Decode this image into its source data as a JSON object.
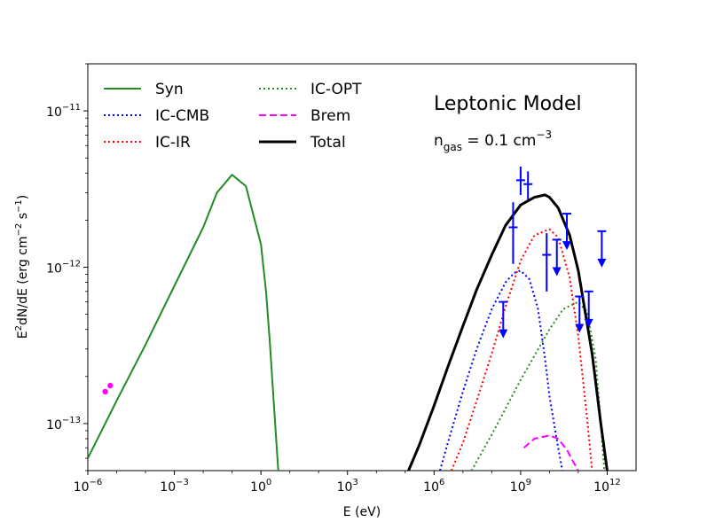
{
  "chart_data": {
    "type": "line",
    "title": "Leptonic Model",
    "annotation": {
      "base": "n",
      "sub": "gas",
      "eq": " = 0.1 cm",
      "sup": "−3"
    },
    "xlabel": "E (eV)",
    "ylabel": {
      "main": "E",
      "sup1": "2",
      "mid": "dN/dE (erg cm",
      "sup2": "−2",
      "mid2": " s",
      "sup3": "−1",
      "end": ")"
    },
    "x_scale": "log",
    "y_scale": "log",
    "xlim": [
      1e-06,
      10000000000000.0
    ],
    "ylim": [
      5e-14,
      2e-11
    ],
    "x_ticks": [
      {
        "value": 1e-06,
        "base": "10",
        "exp": "−6"
      },
      {
        "value": 0.001,
        "base": "10",
        "exp": "−3"
      },
      {
        "value": 1.0,
        "base": "10",
        "exp": "0"
      },
      {
        "value": 1000.0,
        "base": "10",
        "exp": "3"
      },
      {
        "value": 1000000.0,
        "base": "10",
        "exp": "6"
      },
      {
        "value": 1000000000.0,
        "base": "10",
        "exp": "9"
      },
      {
        "value": 1000000000000.0,
        "base": "10",
        "exp": "12"
      }
    ],
    "y_ticks": [
      {
        "value": 1e-13,
        "base": "10",
        "exp": "−13"
      },
      {
        "value": 1e-12,
        "base": "10",
        "exp": "−12"
      },
      {
        "value": 1e-11,
        "base": "10",
        "exp": "−11"
      }
    ],
    "legend": {
      "placement": "top-left",
      "columns": 2
    },
    "series": [
      {
        "name": "Syn",
        "color": "#228B22",
        "style": "solid",
        "width": 2,
        "x": [
          1e-06,
          1e-05,
          0.0001,
          0.001,
          0.01,
          0.03,
          0.1,
          0.3,
          1,
          1.5,
          2,
          3,
          4
        ],
        "y": [
          6e-14,
          1.4e-13,
          3.2e-13,
          7.6e-13,
          1.8e-12,
          3e-12,
          3.9e-12,
          3.3e-12,
          1.4e-12,
          7e-13,
          3.5e-13,
          1.1e-13,
          5e-14
        ]
      },
      {
        "name": "IC-CMB",
        "color": "#0000FF",
        "style": "dotted",
        "width": 2,
        "x": [
          1600000.0,
          3000000.0,
          10000000.0,
          30000000.0,
          100000000.0,
          300000000.0,
          600000000.0,
          1000000000.0,
          2000000000.0,
          4000000000.0,
          7000000000.0,
          10000000000.0,
          20000000000.0,
          28000000000.0
        ],
        "y": [
          5e-14,
          7.5e-14,
          1.6e-13,
          3e-13,
          5.4e-13,
          8e-13,
          9.2e-13,
          9.5e-13,
          8.4e-13,
          5.4e-13,
          2.6e-13,
          1.5e-13,
          7e-14,
          5e-14
        ]
      },
      {
        "name": "IC-IR",
        "color": "#FF0000",
        "style": "dotted",
        "width": 2,
        "x": [
          4000000.0,
          10000000.0,
          30000000.0,
          100000000.0,
          300000000.0,
          1000000000.0,
          3000000000.0,
          10000000000.0,
          20000000000.0,
          50000000000.0,
          100000000000.0,
          200000000000.0,
          300000000000.0
        ],
        "y": [
          5e-14,
          7.5e-14,
          1.4e-13,
          2.8e-13,
          5.6e-13,
          1.1e-12,
          1.6e-12,
          1.75e-12,
          1.55e-12,
          8.6e-13,
          3.6e-13,
          1.1e-13,
          5e-14
        ]
      },
      {
        "name": "IC-OPT",
        "color": "#228B22",
        "style": "dotted",
        "width": 2,
        "x": [
          20000000.0,
          100000000.0,
          1000000000.0,
          10000000000.0,
          30000000000.0,
          100000000000.0,
          200000000000.0,
          400000000000.0,
          600000000000.0,
          800000000000.0
        ],
        "y": [
          5e-14,
          8.5e-14,
          1.9e-13,
          4e-13,
          5.4e-13,
          6e-13,
          5.2e-13,
          2.6e-13,
          1e-13,
          5e-14
        ]
      },
      {
        "name": "Brem",
        "color": "#FF00FF",
        "style": "dashed",
        "width": 2,
        "x": [
          1300000000.0,
          3000000000.0,
          10000000000.0,
          20000000000.0,
          40000000000.0,
          70000000000.0,
          100000000000.0
        ],
        "y": [
          7e-14,
          8e-14,
          8.4e-14,
          8e-14,
          6.8e-14,
          5.6e-14,
          5e-14
        ]
      },
      {
        "name": "Total",
        "color": "#000000",
        "style": "solid",
        "width": 3,
        "x": [
          130000.0,
          300000.0,
          1000000.0,
          3000000.0,
          10000000.0,
          30000000.0,
          100000000.0,
          300000000.0,
          1000000000.0,
          3000000000.0,
          7000000000.0,
          10000000000.0,
          20000000000.0,
          50000000000.0,
          100000000000.0,
          300000000000.0,
          600000000000.0,
          1000000000000.0
        ],
        "y": [
          5e-14,
          7.2e-14,
          1.3e-13,
          2.3e-13,
          4.2e-13,
          7.2e-13,
          1.2e-12,
          1.85e-12,
          2.5e-12,
          2.8e-12,
          2.9e-12,
          2.8e-12,
          2.4e-12,
          1.6e-12,
          9.5e-13,
          2.8e-13,
          1e-13,
          5e-14
        ]
      }
    ],
    "observations": {
      "radio": {
        "color": "#FF00FF",
        "points": [
          {
            "x": 4e-06,
            "y": 1.6e-13
          },
          {
            "x": 6e-06,
            "y": 1.75e-13
          }
        ]
      },
      "gamma": {
        "color": "#0000FF",
        "points": [
          {
            "x": 250000000.0,
            "y": 6e-13,
            "upper_limit": true
          },
          {
            "x": 550000000.0,
            "y": 1.8e-12,
            "ylo": 1.05e-12,
            "yhi": 2.6e-12
          },
          {
            "x": 1000000000.0,
            "y": 3.6e-12,
            "ylo": 2.9e-12,
            "yhi": 4.4e-12
          },
          {
            "x": 1800000000.0,
            "y": 3.4e-12,
            "ylo": 2.7e-12,
            "yhi": 4.1e-12
          },
          {
            "x": 8000000000.0,
            "y": 1.2e-12,
            "ylo": 7e-13,
            "yhi": 1.65e-12
          },
          {
            "x": 18000000000.0,
            "y": 1.5e-12,
            "upper_limit": true
          },
          {
            "x": 40000000000.0,
            "y": 2.2e-12,
            "upper_limit": true
          },
          {
            "x": 110000000000.0,
            "y": 6.5e-13,
            "upper_limit": true
          },
          {
            "x": 230000000000.0,
            "y": 7e-13,
            "upper_limit": true
          },
          {
            "x": 650000000000.0,
            "y": 1.7e-12,
            "upper_limit": true
          }
        ]
      }
    }
  }
}
